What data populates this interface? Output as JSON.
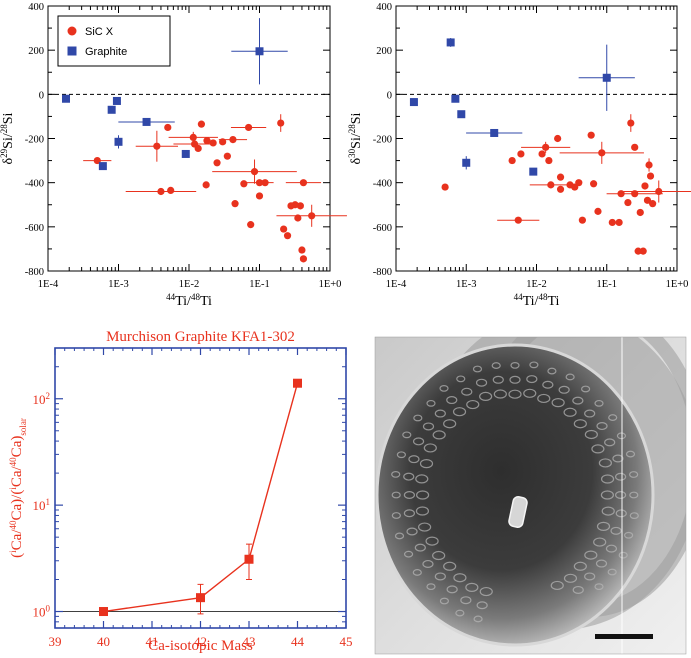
{
  "chart_data": [
    {
      "type": "scatter",
      "xscale": "log",
      "xlim": [
        0.0001,
        1
      ],
      "ylim": [
        -800,
        400
      ],
      "x_ticks": [
        "1E-4",
        "1E-3",
        "1E-2",
        "1E-1",
        "1E+0"
      ],
      "y_ticks": [
        "-800",
        "-600",
        "-400",
        "-200",
        "0",
        "200",
        "400"
      ],
      "xlabel_parts": [
        "44",
        "Ti/",
        "48",
        "Ti"
      ],
      "ylabel_parts": [
        "δ",
        "29",
        "Si/",
        "28",
        "Si"
      ],
      "reference_line_y": 0,
      "legend_position": "top-left",
      "series": [
        {
          "name": "SiC X",
          "marker": "circle",
          "color": "#e8321e",
          "points": [
            [
              0.0005,
              -300,
              0.2,
              0
            ],
            [
              0.0035,
              -235,
              0.3,
              70
            ],
            [
              0.005,
              -150,
              0,
              0
            ],
            [
              0.0055,
              -435,
              0,
              0
            ],
            [
              0.004,
              -440,
              0.5,
              0
            ],
            [
              0.0115,
              -195,
              0.35,
              25
            ],
            [
              0.012,
              -225,
              0.3,
              0
            ],
            [
              0.0135,
              -245,
              0,
              0
            ],
            [
              0.015,
              -135,
              0,
              0
            ],
            [
              0.018,
              -210,
              0,
              0
            ],
            [
              0.0175,
              -410,
              0,
              0
            ],
            [
              0.022,
              -220,
              0,
              0
            ],
            [
              0.025,
              -310,
              0,
              0
            ],
            [
              0.03,
              -215,
              0,
              0
            ],
            [
              0.035,
              -280,
              0,
              0
            ],
            [
              0.042,
              -205,
              0.2,
              0
            ],
            [
              0.045,
              -495,
              0,
              0
            ],
            [
              0.06,
              -405,
              0,
              0
            ],
            [
              0.07,
              -150,
              0.25,
              0
            ],
            [
              0.075,
              -590,
              0,
              0
            ],
            [
              0.085,
              -350,
              0.6,
              55
            ],
            [
              0.1,
              -400,
              0.2,
              0
            ],
            [
              0.12,
              -400,
              0,
              0
            ],
            [
              0.1,
              -460,
              0,
              0
            ],
            [
              0.2,
              -130,
              0,
              40
            ],
            [
              0.22,
              -610,
              0,
              0
            ],
            [
              0.25,
              -640,
              0,
              0
            ],
            [
              0.28,
              -505,
              0,
              0
            ],
            [
              0.32,
              -500,
              0,
              0
            ],
            [
              0.35,
              -560,
              0,
              0
            ],
            [
              0.38,
              -505,
              0,
              0
            ],
            [
              0.42,
              -400,
              0.25,
              0
            ],
            [
              0.4,
              -705,
              0,
              0
            ],
            [
              0.42,
              -745,
              0,
              0
            ],
            [
              0.55,
              -550,
              0.5,
              50
            ]
          ]
        },
        {
          "name": "Graphite",
          "marker": "square",
          "color": "#3048a8",
          "points": [
            [
              0.00018,
              -20,
              0,
              0
            ],
            [
              0.0006,
              -325,
              0,
              0
            ],
            [
              0.0008,
              -70,
              0,
              0
            ],
            [
              0.00095,
              -30,
              0,
              0
            ],
            [
              0.001,
              -215,
              0,
              30
            ],
            [
              0.0025,
              -125,
              0.4,
              0
            ],
            [
              0.009,
              -270,
              0,
              0
            ],
            [
              0.1,
              195,
              0.4,
              150
            ]
          ]
        }
      ]
    },
    {
      "type": "scatter",
      "xscale": "log",
      "xlim": [
        0.0001,
        1
      ],
      "ylim": [
        -800,
        400
      ],
      "x_ticks": [
        "1E-4",
        "1E-3",
        "1E-2",
        "1E-1",
        "1E+0"
      ],
      "y_ticks": [
        "-800",
        "-600",
        "-400",
        "-200",
        "0",
        "200",
        "400"
      ],
      "xlabel_parts": [
        "44",
        "Ti/",
        "48",
        "Ti"
      ],
      "ylabel_parts": [
        "δ",
        "30",
        "Si/",
        "28",
        "Si"
      ],
      "reference_line_y": 0,
      "series": [
        {
          "name": "SiC X",
          "marker": "circle",
          "color": "#e8321e",
          "points": [
            [
              0.0005,
              -420,
              0,
              0
            ],
            [
              0.0045,
              -300,
              0,
              0
            ],
            [
              0.0055,
              -570,
              0.3,
              0
            ],
            [
              0.006,
              -270,
              0,
              0
            ],
            [
              0.012,
              -270,
              0,
              0
            ],
            [
              0.0135,
              -240,
              0.35,
              25
            ],
            [
              0.015,
              -300,
              0,
              0
            ],
            [
              0.016,
              -410,
              0.3,
              0
            ],
            [
              0.02,
              -200,
              0,
              0
            ],
            [
              0.022,
              -430,
              0,
              0
            ],
            [
              0.022,
              -375,
              0,
              0
            ],
            [
              0.03,
              -410,
              0,
              0
            ],
            [
              0.035,
              -420,
              0,
              0
            ],
            [
              0.04,
              -400,
              0,
              0
            ],
            [
              0.045,
              -570,
              0,
              0
            ],
            [
              0.06,
              -185,
              0,
              0
            ],
            [
              0.065,
              -405,
              0,
              0
            ],
            [
              0.075,
              -530,
              0,
              0
            ],
            [
              0.085,
              -265,
              0.6,
              50
            ],
            [
              0.12,
              -580,
              0,
              0
            ],
            [
              0.15,
              -580,
              0,
              0
            ],
            [
              0.16,
              -450,
              0,
              0
            ],
            [
              0.2,
              -490,
              0,
              0
            ],
            [
              0.25,
              -450,
              0.4,
              0
            ],
            [
              0.22,
              -130,
              0,
              40
            ],
            [
              0.25,
              -240,
              0,
              0
            ],
            [
              0.3,
              -535,
              0,
              0
            ],
            [
              0.28,
              -710,
              0,
              0
            ],
            [
              0.33,
              -710,
              0,
              0
            ],
            [
              0.35,
              -415,
              0,
              0
            ],
            [
              0.38,
              -480,
              0,
              0
            ],
            [
              0.4,
              -320,
              0,
              30
            ],
            [
              0.42,
              -370,
              0,
              0
            ],
            [
              0.45,
              -495,
              0,
              0
            ],
            [
              0.55,
              -440,
              0.5,
              50
            ]
          ]
        },
        {
          "name": "Graphite",
          "marker": "square",
          "color": "#3048a8",
          "points": [
            [
              0.00018,
              -35,
              0,
              0
            ],
            [
              0.0006,
              235,
              0,
              20
            ],
            [
              0.0007,
              -20,
              0,
              0
            ],
            [
              0.00085,
              -90,
              0,
              0
            ],
            [
              0.001,
              -310,
              0,
              30
            ],
            [
              0.0025,
              -175,
              0.4,
              0
            ],
            [
              0.009,
              -350,
              0,
              0
            ],
            [
              0.1,
              75,
              0.4,
              150
            ]
          ]
        }
      ]
    },
    {
      "type": "line",
      "title": "Murchison Graphite KFA1-302",
      "xlabel": "Ca-isotopic Mass",
      "ylabel_parts": [
        "(",
        "i",
        "Ca/",
        "40",
        "Ca)/(",
        "i",
        "Ca/",
        "40",
        "Ca)",
        "solar"
      ],
      "yscale": "log",
      "xlim": [
        39,
        45
      ],
      "ylim": [
        0.7,
        300
      ],
      "x_ticks": [
        "39",
        "40",
        "41",
        "42",
        "43",
        "44",
        "45"
      ],
      "y_ticks": [
        {
          "base": "10",
          "exp": "0"
        },
        {
          "base": "10",
          "exp": "1"
        },
        {
          "base": "10",
          "exp": "2"
        }
      ],
      "reference_line_y": 1,
      "color": "#e8321e",
      "axis_color": "#3048a8",
      "points": [
        {
          "x": 40,
          "y": 1.0,
          "err_lo": 0,
          "err_hi": 0
        },
        {
          "x": 42,
          "y": 1.35,
          "err_lo": 0.4,
          "err_hi": 0.45
        },
        {
          "x": 43,
          "y": 3.1,
          "err_lo": 1.1,
          "err_hi": 1.2
        },
        {
          "x": 44,
          "y": 140,
          "err_lo": 0,
          "err_hi": 0
        }
      ]
    }
  ],
  "sem_image": {
    "subject": "SEM micrograph of graphite grain",
    "scale_bar": true
  }
}
